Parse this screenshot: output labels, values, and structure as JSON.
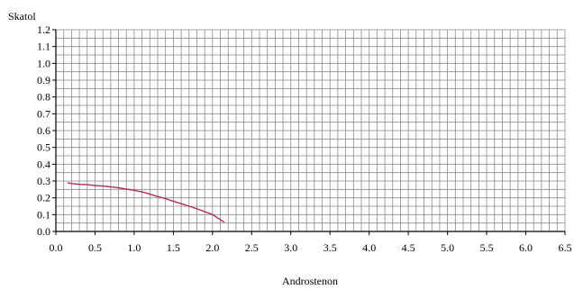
{
  "chart_data": {
    "type": "line",
    "title": "",
    "xlabel": "Androstenon",
    "ylabel": "Skatol",
    "xlim": [
      0,
      6.5
    ],
    "ylim": [
      0,
      1.2
    ],
    "x_tick_labels": [
      "0.0",
      "0.5",
      "1.0",
      "1.5",
      "2.0",
      "2.5",
      "3.0",
      "3.5",
      "4.0",
      "4.5",
      "5.0",
      "5.5",
      "6.0",
      "6.5"
    ],
    "y_tick_labels": [
      "0.0",
      "0.1",
      "0.2",
      "0.3",
      "0.4",
      "0.5",
      "0.6",
      "0.7",
      "0.8",
      "0.9",
      "1.0",
      "1.1",
      "1.2"
    ],
    "grid": true,
    "legend": "none",
    "series_color": "#b03050",
    "series": [
      {
        "x": [
          0.15,
          0.2,
          0.3,
          0.4,
          0.5,
          0.6,
          0.7,
          0.8,
          0.9,
          1.0,
          1.1,
          1.2,
          1.3,
          1.4,
          1.5,
          1.6,
          1.7,
          1.8,
          1.9,
          2.0,
          2.05,
          2.1,
          2.15
        ],
        "y": [
          0.29,
          0.285,
          0.28,
          0.278,
          0.273,
          0.27,
          0.265,
          0.26,
          0.252,
          0.245,
          0.235,
          0.222,
          0.208,
          0.195,
          0.18,
          0.165,
          0.15,
          0.135,
          0.118,
          0.1,
          0.085,
          0.07,
          0.055
        ]
      }
    ]
  }
}
